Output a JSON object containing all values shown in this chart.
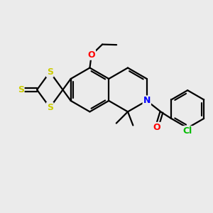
{
  "background_color": "#ebebeb",
  "atom_colors": {
    "S": "#cccc00",
    "N": "#0000ff",
    "O": "#ff0000",
    "Cl": "#00bb00",
    "C": "#000000"
  },
  "bond_color": "#000000",
  "bond_width": 1.6,
  "figsize": [
    3.0,
    3.0
  ],
  "dpi": 100
}
